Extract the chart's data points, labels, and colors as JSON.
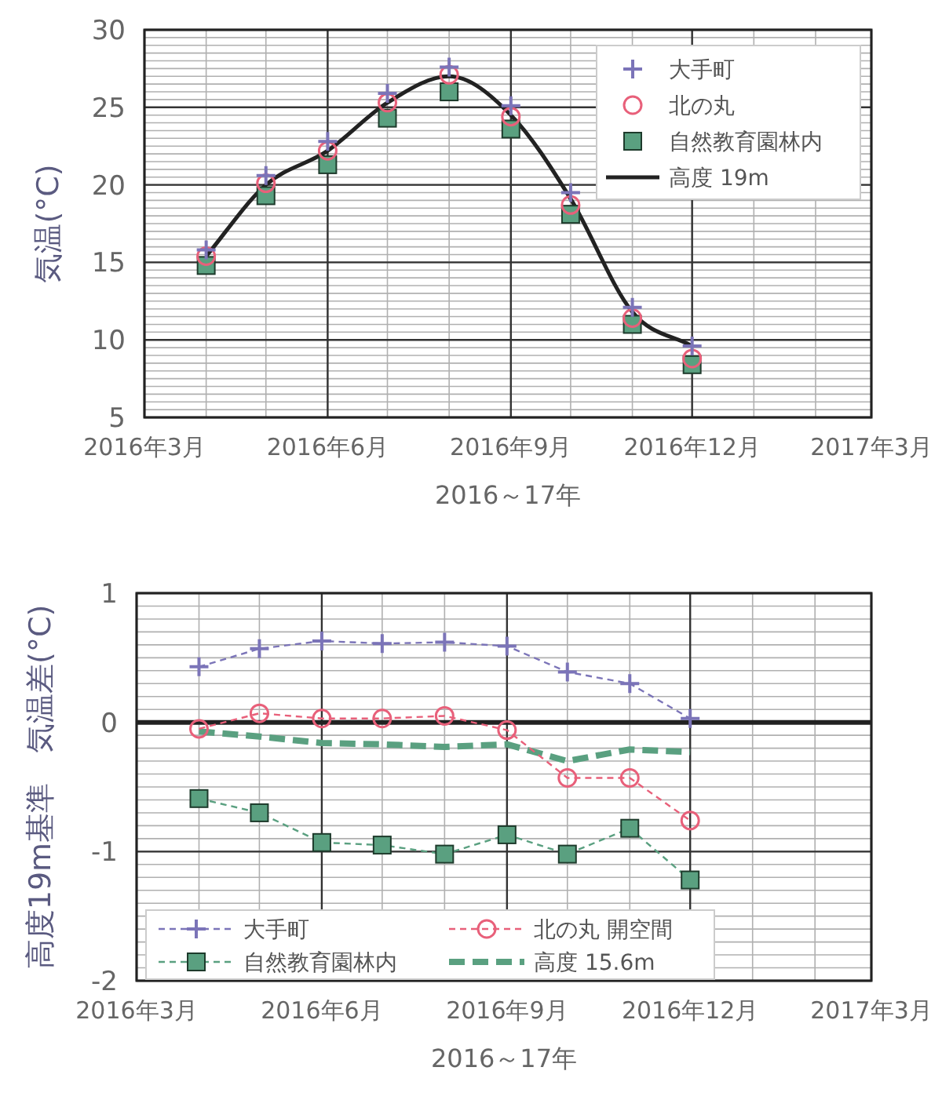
{
  "chart_data": [
    {
      "type": "scatter",
      "ylabel": "気温(°C)",
      "xlabel": "2016～17年",
      "x": [
        "2016-04",
        "2016-05",
        "2016-06",
        "2016-07",
        "2016-08",
        "2016-09",
        "2016-10",
        "2016-11",
        "2016-12"
      ],
      "xlim": [
        "2016-03",
        "2017-03"
      ],
      "xticks": [
        {
          "value": "2016-03",
          "label": "2016年3月"
        },
        {
          "value": "2016-06",
          "label": "2016年6月"
        },
        {
          "value": "2016-09",
          "label": "2016年9月"
        },
        {
          "value": "2016-12",
          "label": "2016年12月"
        },
        {
          "value": "2017-03",
          "label": "2017年3月"
        }
      ],
      "ylim": [
        5,
        30
      ],
      "yticks": [
        5,
        10,
        15,
        20,
        25,
        30
      ],
      "grid": true,
      "legend": "top right",
      "series": [
        {
          "name": "大手町",
          "marker": "cross",
          "color": "#7b74b8",
          "values": [
            15.8,
            20.6,
            22.8,
            25.9,
            27.6,
            25.1,
            19.5,
            12.1,
            9.6
          ]
        },
        {
          "name": "北の丸",
          "marker": "circle",
          "color": "#e8607a",
          "values": [
            15.4,
            20.1,
            22.2,
            25.3,
            27.1,
            24.4,
            18.7,
            11.4,
            8.8
          ]
        },
        {
          "name": "自然教育園林内",
          "marker": "square",
          "color": "#5aa080",
          "values": [
            14.8,
            19.3,
            21.3,
            24.3,
            26.0,
            23.6,
            18.1,
            11.0,
            8.4
          ]
        },
        {
          "name": "高度  19m",
          "type": "line",
          "marker": "none",
          "line_style": "solid",
          "color": "#222222",
          "values": [
            15.4,
            20.0,
            22.2,
            25.3,
            27.0,
            24.5,
            19.1,
            11.8,
            9.6
          ]
        }
      ]
    },
    {
      "type": "line",
      "ylabel": "高度19m基準　気温差(°C)",
      "xlabel": "2016～17年",
      "x": [
        "2016-04",
        "2016-05",
        "2016-06",
        "2016-07",
        "2016-08",
        "2016-09",
        "2016-10",
        "2016-11",
        "2016-12"
      ],
      "xlim": [
        "2016-03",
        "2017-03"
      ],
      "xticks": [
        {
          "value": "2016-03",
          "label": "2016年3月"
        },
        {
          "value": "2016-06",
          "label": "2016年6月"
        },
        {
          "value": "2016-09",
          "label": "2016年9月"
        },
        {
          "value": "2016-12",
          "label": "2016年12月"
        },
        {
          "value": "2017-03",
          "label": "2017年3月"
        }
      ],
      "ylim": [
        -2,
        1
      ],
      "yticks": [
        {
          "value": -2,
          "label": "-2"
        },
        {
          "value": -1,
          "label": "-1"
        },
        0,
        1
      ],
      "grid": true,
      "legend": "bottom",
      "ref_lines": [
        {
          "axis": "y",
          "value": 0,
          "color": "#222222"
        }
      ],
      "series": [
        {
          "name": "大手町",
          "marker": "cross",
          "line_style": "dashed",
          "color": "#7b74b8",
          "values": [
            0.43,
            0.57,
            0.63,
            0.61,
            0.62,
            0.59,
            0.39,
            0.3,
            0.03
          ]
        },
        {
          "name": "北の丸  開空間",
          "marker": "circle",
          "line_style": "dashed",
          "color": "#e8607a",
          "values": [
            -0.05,
            0.07,
            0.03,
            0.03,
            0.05,
            -0.06,
            -0.43,
            -0.43,
            -0.76
          ]
        },
        {
          "name": "自然教育園林内",
          "marker": "square",
          "line_style": "dashed",
          "color": "#5aa080",
          "values": [
            -0.59,
            -0.7,
            -0.93,
            -0.95,
            -1.02,
            -0.87,
            -1.02,
            -0.82,
            -1.22
          ]
        },
        {
          "name": "高度  15.6m",
          "marker": "none",
          "line_style": "dashed",
          "color": "#5aa080",
          "values": [
            -0.07,
            -0.11,
            -0.16,
            -0.17,
            -0.19,
            -0.17,
            -0.3,
            -0.21,
            -0.23
          ]
        }
      ]
    }
  ]
}
